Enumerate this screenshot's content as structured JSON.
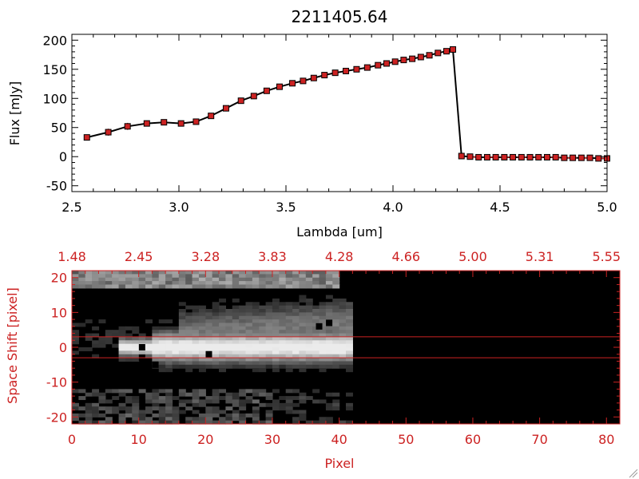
{
  "colors": {
    "background": "#ffffff",
    "axis_black": "#000000",
    "accent_red": "#cc2222",
    "marker_red": "#cc2222",
    "image_bg": "#000000"
  },
  "chart_data": [
    {
      "type": "line",
      "title": "2211405.64",
      "xlabel": "Lambda [um]",
      "ylabel": "Flux [mJy]",
      "xlim": [
        2.5,
        5.0
      ],
      "ylim": [
        -60,
        210
      ],
      "xticks": [
        2.5,
        3.0,
        3.5,
        4.0,
        4.5,
        5.0
      ],
      "xtick_labels": [
        "2.5",
        "3.0",
        "3.5",
        "4.0",
        "4.5",
        "5.0"
      ],
      "yticks": [
        -50,
        0,
        50,
        100,
        150,
        200
      ],
      "ytick_labels": [
        "-50",
        "0",
        "50",
        "100",
        "150",
        "200"
      ],
      "grid": false,
      "series": [
        {
          "x": [
            2.57,
            2.67,
            2.76,
            2.85,
            2.93,
            3.01,
            3.08,
            3.15,
            3.22,
            3.29,
            3.35,
            3.41,
            3.47,
            3.53,
            3.58,
            3.63,
            3.68,
            3.73,
            3.78,
            3.83,
            3.88,
            3.93,
            3.97,
            4.01,
            4.05,
            4.09,
            4.13,
            4.17,
            4.21,
            4.25,
            4.28,
            4.32,
            4.36,
            4.4,
            4.44,
            4.48,
            4.52,
            4.56,
            4.6,
            4.64,
            4.68,
            4.72,
            4.76,
            4.8,
            4.84,
            4.88,
            4.92,
            4.96,
            5.0
          ],
          "y": [
            33,
            42,
            52,
            57,
            59,
            57,
            60,
            70,
            83,
            96,
            104,
            113,
            120,
            126,
            130,
            135,
            140,
            144,
            147,
            150,
            153,
            157,
            160,
            163,
            166,
            168,
            171,
            174,
            178,
            181,
            184,
            1,
            0,
            -1,
            -1,
            -1,
            -1,
            -1,
            -1,
            -1,
            -1,
            -1,
            -1,
            -2,
            -2,
            -2,
            -2,
            -3,
            -3
          ],
          "yerr": [
            3,
            6,
            6,
            5,
            3,
            3,
            3,
            5,
            3,
            3,
            3,
            3,
            3,
            3,
            3,
            3,
            3,
            3,
            3,
            3,
            3,
            3,
            3,
            3,
            3,
            3,
            3,
            3,
            3,
            3,
            3,
            2,
            2,
            2,
            2,
            2,
            2,
            2,
            2,
            2,
            2,
            2,
            2,
            2,
            2,
            2,
            2,
            2,
            2
          ]
        }
      ]
    },
    {
      "type": "heatmap",
      "xlabel": "Pixel",
      "ylabel": "Space Shift [pixel]",
      "xlim": [
        0,
        82
      ],
      "ylim": [
        -22,
        22
      ],
      "xticks": [
        0,
        10,
        20,
        30,
        40,
        50,
        60,
        70,
        80
      ],
      "xtick_labels": [
        "0",
        "10",
        "20",
        "30",
        "40",
        "50",
        "60",
        "70",
        "80"
      ],
      "yticks": [
        -20,
        -10,
        0,
        10,
        20
      ],
      "ytick_labels": [
        "-20",
        "-10",
        "0",
        "10",
        "20"
      ],
      "top_axis_labels": [
        "1.48",
        "2.45",
        "3.28",
        "3.83",
        "4.28",
        "4.66",
        "5.00",
        "5.31",
        "5.55"
      ],
      "hlines": [
        3,
        -3
      ],
      "data_extent_pixel": 42,
      "description_colormap": "grayscale"
    }
  ]
}
